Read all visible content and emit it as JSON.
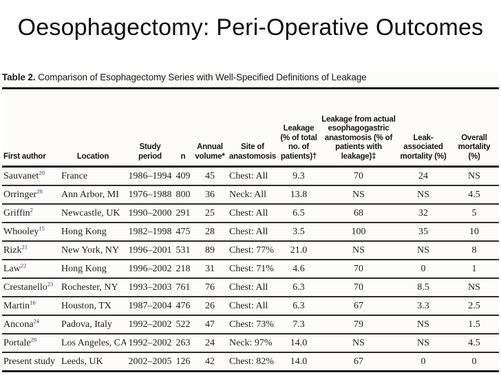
{
  "slide": {
    "title": "Oesophagectomy: Peri-Operative Outcomes"
  },
  "table": {
    "caption_label": "Table 2.",
    "caption_text": "Comparison of Esophagectomy Series with Well-Specified Definitions of Leakage",
    "columns": [
      {
        "id": "author",
        "label": "First author"
      },
      {
        "id": "location",
        "label": "Location"
      },
      {
        "id": "period",
        "label": "Study\nperiod"
      },
      {
        "id": "n",
        "label": "n"
      },
      {
        "id": "volume",
        "label": "Annual\nvolume*"
      },
      {
        "id": "site",
        "label": "Site of\nanastomosis"
      },
      {
        "id": "leakage",
        "label": "Leakage\n(% of total\nno. of\npatients)†"
      },
      {
        "id": "leakage_anastomosis",
        "label": "Leakage from actual\nesophagogastric\nanastomosis (% of\npatients with\nleakage)‡"
      },
      {
        "id": "leak_mortality",
        "label": "Leak-\nassociated\nmortality (%)"
      },
      {
        "id": "overall_mortality",
        "label": "Overall\nmortality\n(%)"
      }
    ],
    "rows": [
      {
        "author": "Sauvanet",
        "ref": "20",
        "location": "France",
        "period": "1986–1994",
        "n": "409",
        "volume": "45",
        "site": "Chest: All",
        "leakage": "9.3",
        "leakage_anastomosis": "70",
        "leak_mortality": "24",
        "overall_mortality": "NS"
      },
      {
        "author": "Orringer",
        "ref": "28",
        "location": "Ann Arbor, MI",
        "period": "1976–1988",
        "n": "800",
        "volume": "36",
        "site": "Neck: All",
        "leakage": "13.8",
        "leakage_anastomosis": "NS",
        "leak_mortality": "NS",
        "overall_mortality": "4.5"
      },
      {
        "author": "Griffin",
        "ref": "2",
        "location": "Newcastle, UK",
        "period": "1990–2000",
        "n": "291",
        "volume": "25",
        "site": "Chest: All",
        "leakage": "6.5",
        "leakage_anastomosis": "68",
        "leak_mortality": "32",
        "overall_mortality": "5"
      },
      {
        "author": "Whooley",
        "ref": "15",
        "location": "Hong Kong",
        "period": "1982–1998",
        "n": "475",
        "volume": "28",
        "site": "Chest: All",
        "leakage": "3.5",
        "leakage_anastomosis": "100",
        "leak_mortality": "35",
        "overall_mortality": "10"
      },
      {
        "author": "Rizk",
        "ref": "21",
        "location": "New York, NY",
        "period": "1996–2001",
        "n": "531",
        "volume": "89",
        "site": "Chest: 77%",
        "leakage": "21.0",
        "leakage_anastomosis": "NS",
        "leak_mortality": "NS",
        "overall_mortality": "8"
      },
      {
        "author": "Law",
        "ref": "22",
        "location": "Hong Kong",
        "period": "1996–2002",
        "n": "218",
        "volume": "31",
        "site": "Chest: 71%",
        "leakage": "4.6",
        "leakage_anastomosis": "70",
        "leak_mortality": "0",
        "overall_mortality": "1"
      },
      {
        "author": "Crestanello",
        "ref": "23",
        "location": "Rochester, NY",
        "period": "1993–2003",
        "n": "761",
        "volume": "76",
        "site": "Chest: All",
        "leakage": "6.3",
        "leakage_anastomosis": "70",
        "leak_mortality": "8.5",
        "overall_mortality": "NS"
      },
      {
        "author": "Martin",
        "ref": "16",
        "location": "Houston, TX",
        "period": "1987–2004",
        "n": "476",
        "volume": "26",
        "site": "Chest: All",
        "leakage": "6.3",
        "leakage_anastomosis": "67",
        "leak_mortality": "3.3",
        "overall_mortality": "2.5"
      },
      {
        "author": "Ancona",
        "ref": "24",
        "location": "Padova, Italy",
        "period": "1992–2002",
        "n": "522",
        "volume": "47",
        "site": "Chest: 73%",
        "leakage": "7.3",
        "leakage_anastomosis": "79",
        "leak_mortality": "NS",
        "overall_mortality": "1.5"
      },
      {
        "author": "Portale",
        "ref": "29",
        "location": "Los Angeles, CA",
        "period": "1992–2002",
        "n": "263",
        "volume": "24",
        "site": "Neck: 97%",
        "leakage": "14.0",
        "leakage_anastomosis": "NS",
        "leak_mortality": "NS",
        "overall_mortality": "4.5"
      },
      {
        "author": "Present study",
        "ref": "",
        "location": "Leeds, UK",
        "period": "2002–2005",
        "n": "126",
        "volume": "42",
        "site": "Chest: 82%",
        "leakage": "14.0",
        "leakage_anastomosis": "67",
        "leak_mortality": "0",
        "overall_mortality": "0"
      }
    ]
  }
}
